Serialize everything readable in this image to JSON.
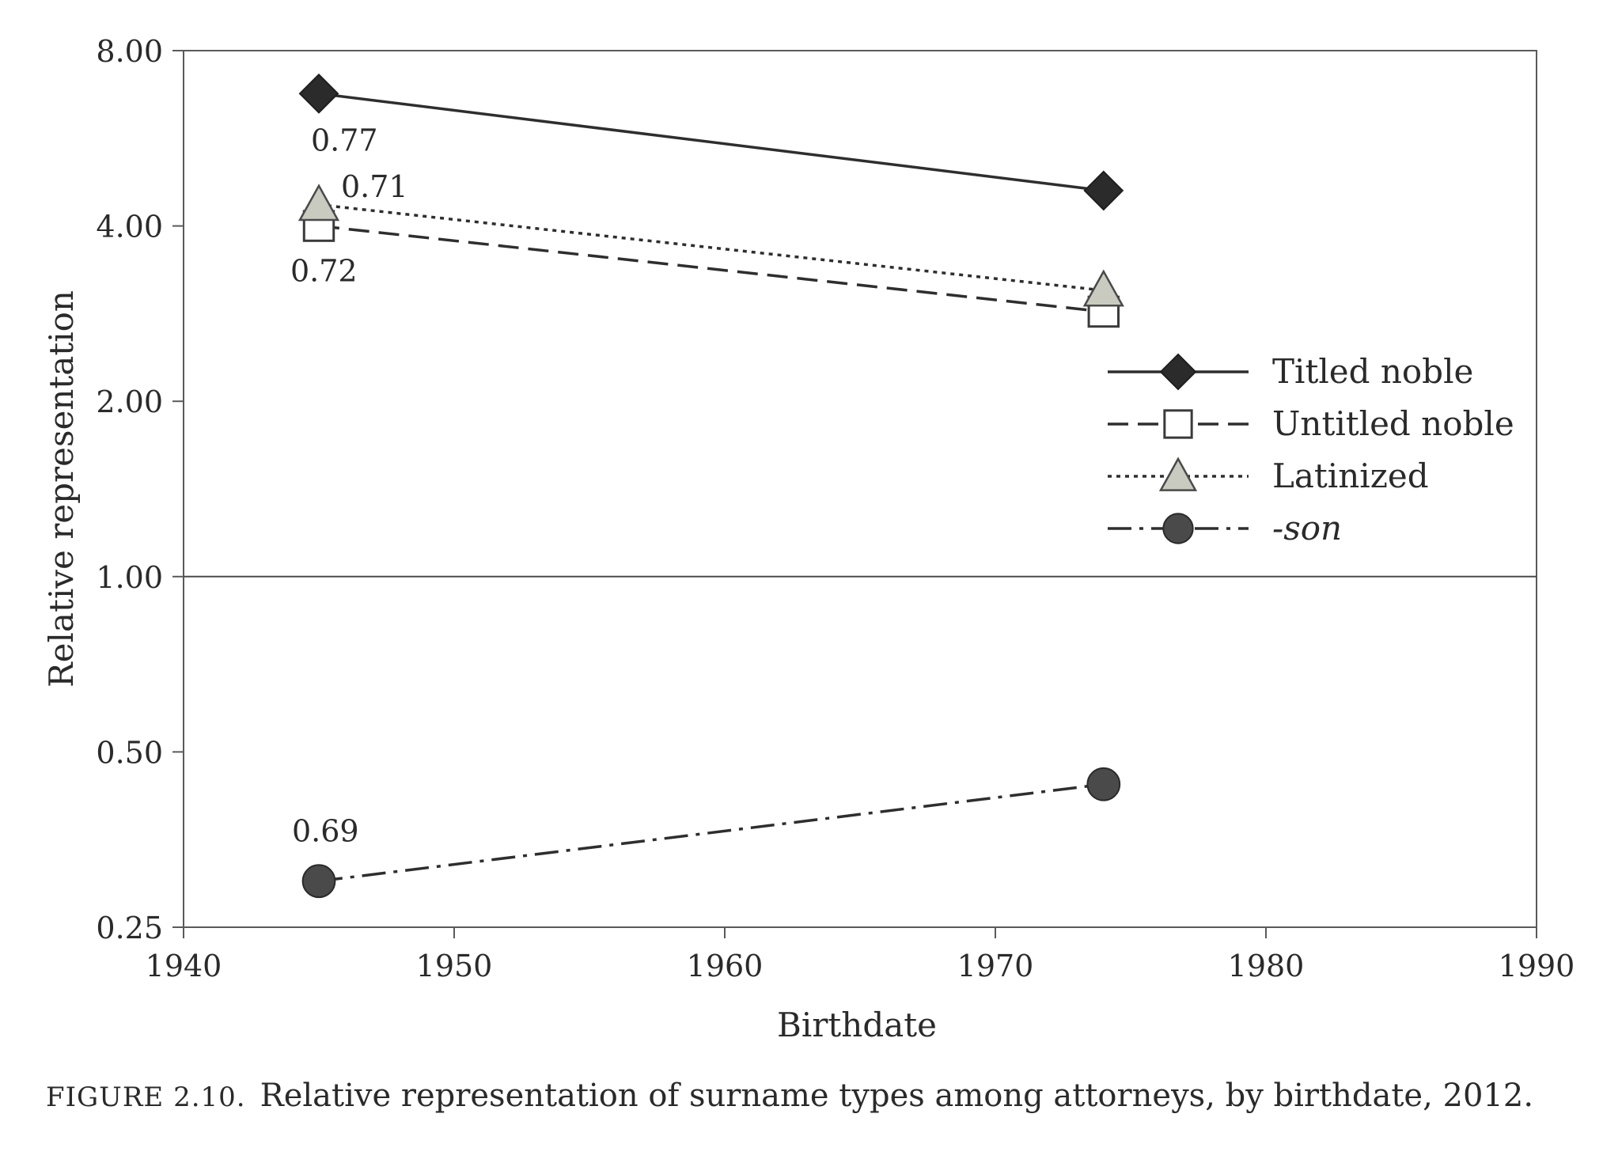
{
  "chart_data": {
    "type": "line",
    "title": "",
    "xlabel": "Birthdate",
    "ylabel": "Relative representation",
    "xlim": [
      1940,
      1990
    ],
    "ylim": [
      0.25,
      8.0
    ],
    "yscale": "log2",
    "x_ticks": [
      "1940",
      "1950",
      "1960",
      "1970",
      "1980",
      "1990"
    ],
    "y_ticks": [
      {
        "value": 0.25,
        "label": "0.25"
      },
      {
        "value": 0.5,
        "label": "0.50"
      },
      {
        "value": 1.0,
        "label": "1.00"
      },
      {
        "value": 2.0,
        "label": "2.00"
      },
      {
        "value": 4.0,
        "label": "4.00"
      },
      {
        "value": 8.0,
        "label": "8.00"
      }
    ],
    "reference_line": 1.0,
    "legend_position": "right",
    "series": [
      {
        "name": "Titled noble",
        "x": [
          1945,
          1974
        ],
        "values": [
          6.75,
          4.6
        ],
        "line": "solid",
        "marker": "diamond",
        "marker_color": "#2b2b2b",
        "annotation": "0.77"
      },
      {
        "name": "Untitled noble",
        "x": [
          1945,
          1974
        ],
        "values": [
          4.0,
          2.85
        ],
        "line": "dashed",
        "marker": "square",
        "marker_color": "#ffffff",
        "annotation": "0.72"
      },
      {
        "name": "Latinized",
        "x": [
          1945,
          1974
        ],
        "values": [
          4.35,
          3.1
        ],
        "line": "dotted",
        "marker": "triangle",
        "marker_color": "#c9cbc1",
        "annotation": "0.71"
      },
      {
        "name": "-son",
        "x": [
          1945,
          1974
        ],
        "values": [
          0.3,
          0.44
        ],
        "line": "dashdot",
        "marker": "circle",
        "marker_color": "#4a4a4a",
        "annotation": "0.69"
      }
    ]
  },
  "caption": {
    "label": "FIGURE 2.10.",
    "text": "Relative representation of surname types among attorneys, by birthdate, 2012."
  }
}
